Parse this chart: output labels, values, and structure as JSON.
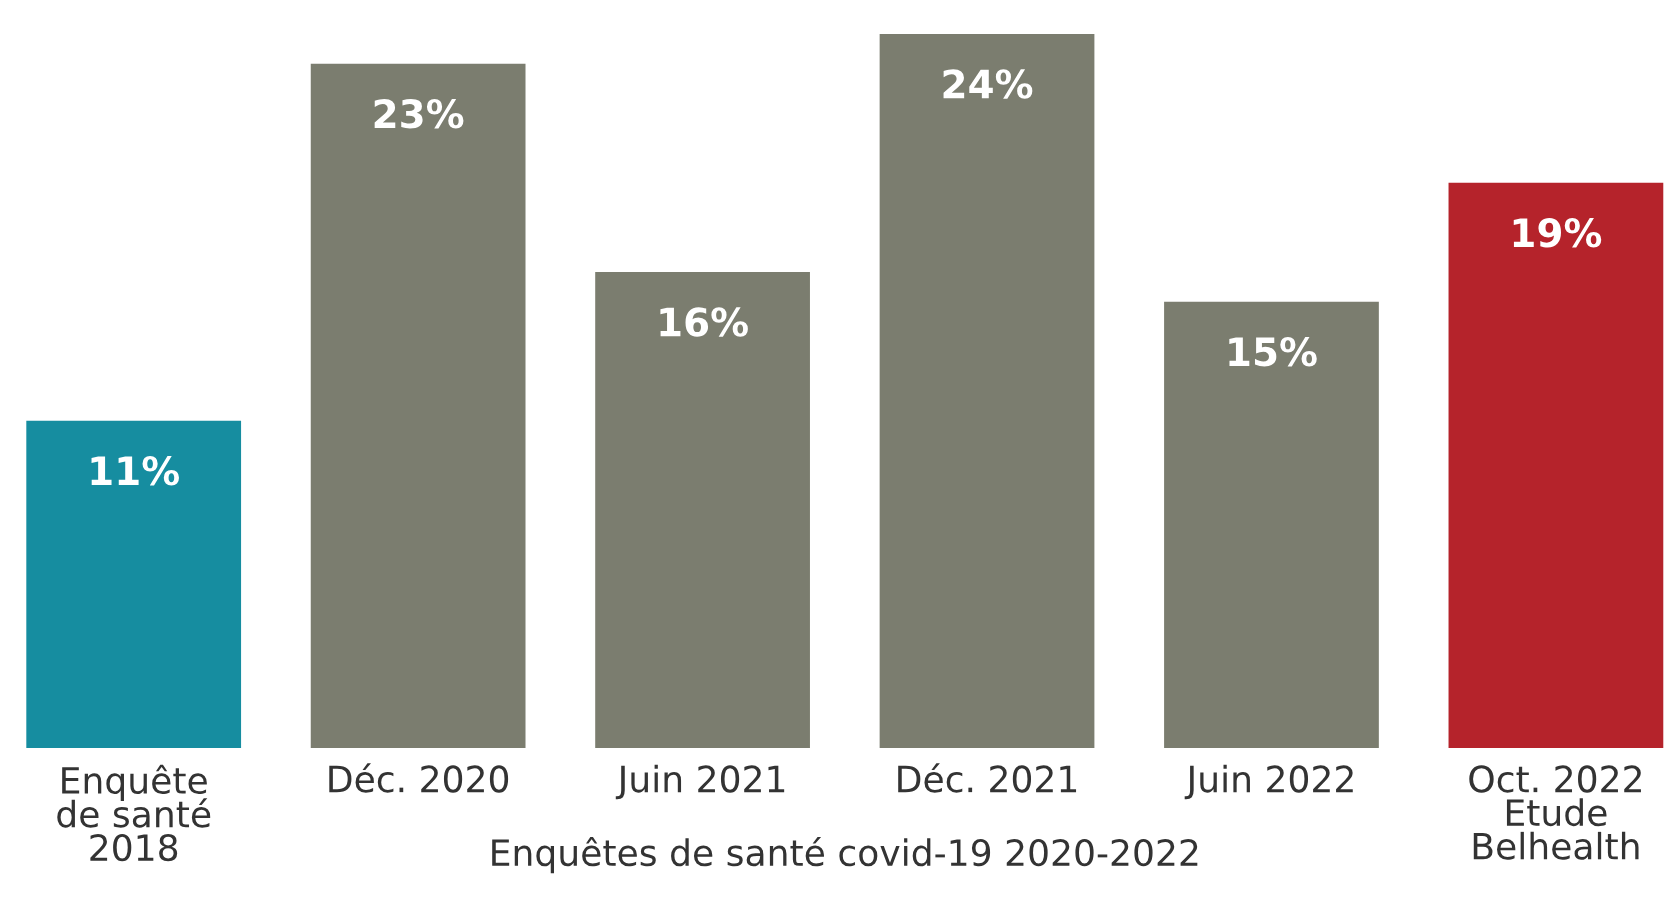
{
  "chart_data": {
    "type": "bar",
    "categories": [
      "Enquête\nde santé\n2018",
      "Déc. 2020",
      "Juin 2021",
      "Déc. 2021",
      "Juin 2022",
      "Oct. 2022\nEtude\nBelhealth"
    ],
    "values": [
      11,
      23,
      16,
      24,
      15,
      19
    ],
    "colors": [
      "#168da0",
      "#7b7d6f",
      "#7b7d6f",
      "#7b7d6f",
      "#7b7d6f",
      "#b5232b"
    ],
    "value_labels": [
      "11%",
      "23%",
      "16%",
      "24%",
      "15%",
      "19%"
    ],
    "annotations": [
      "Enquêtes de santé covid-19 2020-2022"
    ],
    "grid": false,
    "legend": false
  }
}
